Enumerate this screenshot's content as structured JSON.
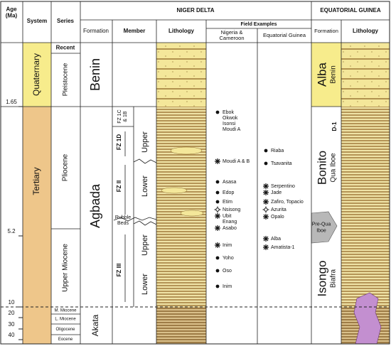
{
  "header": {
    "age": [
      "Age",
      "(Ma)"
    ],
    "system": "System",
    "series": "Series",
    "niger_delta": "NIGER DELTA",
    "equatorial_guinea": "EQUATORIAL GUINEA",
    "formation": "Formation",
    "member": "Member",
    "lithology": "Lithology",
    "field_examples": "Field Examples",
    "nigeria_cameroon": [
      "Nigeria &",
      "Cameroon"
    ],
    "eg_field": "Equatorial Guinea",
    "eg_formation": "Formation",
    "eg_lithology": "Lithology"
  },
  "ages": [
    "1.65",
    "5.2",
    "10",
    "20",
    "30",
    "40"
  ],
  "systems": [
    "Quaternary",
    "Tertiary"
  ],
  "series": [
    "Recent",
    "Pleistocene",
    "Pliocene",
    "Upper Miocene",
    "M. Miocene",
    "L. Miocene",
    "Oligocene",
    "Eocene"
  ],
  "formations": [
    "Benin",
    "Agbada",
    "Akata"
  ],
  "members": [
    [
      "FZ 1C",
      "& 1B"
    ],
    "FZ 1D",
    "FZ II",
    [
      "Rubble",
      "Beds"
    ],
    "FZ III",
    "Upper",
    "Lower",
    "Upper",
    "Lower"
  ],
  "nigeria_fields": [
    "Ebok",
    "Okwok",
    "Isonsi",
    "Moudi A",
    "Moudi A & B",
    "Asasa",
    "Edop",
    "Etim",
    "Nsisong",
    "Ubit",
    "Enang",
    "Asabo",
    "Inim",
    "Yoho",
    "Oso",
    "Inim"
  ],
  "eg_fields": [
    "Riaba",
    "Tsavanita",
    "Serpentino",
    "Jade",
    "Zafiro, Topacio",
    "Azurita",
    "Opalo",
    "Alba",
    "Amatista-1"
  ],
  "eg_formations": [
    {
      "name": "Alba",
      "sub": "Benin"
    },
    {
      "name": "Bonito",
      "sub": "Qua Iboe"
    },
    {
      "name": [
        "Pre-Qua",
        "Iboe"
      ]
    },
    {
      "name": "Isongo",
      "sub": "Biafra"
    }
  ],
  "eg_marker": "D-1"
}
